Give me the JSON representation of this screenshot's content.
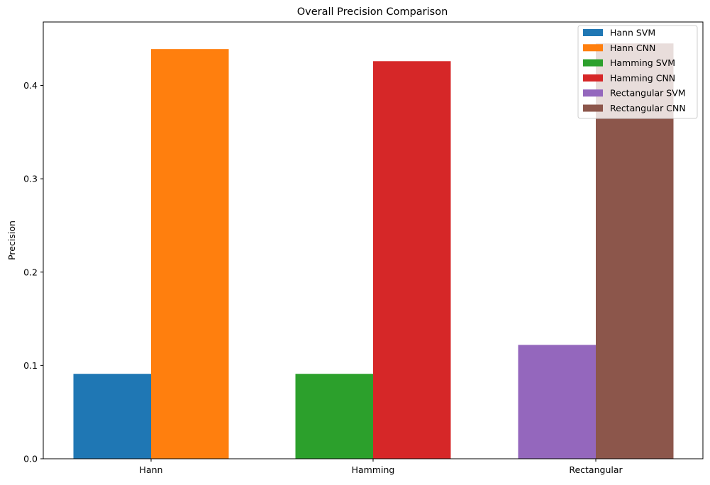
{
  "chart_data": {
    "type": "bar",
    "title": "Overall Precision Comparison",
    "xlabel": "",
    "ylabel": "Precision",
    "categories": [
      "Hann",
      "Hamming",
      "Rectangular"
    ],
    "ylim": [
      0,
      0.468
    ],
    "yticks": [
      0.0,
      0.1,
      0.2,
      0.3,
      0.4
    ],
    "ytick_labels": [
      "0.0",
      "0.1",
      "0.2",
      "0.3",
      "0.4"
    ],
    "grid": false,
    "legend_position": "top-right",
    "series": [
      {
        "name": "Hann SVM",
        "color": "#1f77b4",
        "category": "Hann",
        "slot": "left",
        "value": 0.091
      },
      {
        "name": "Hann CNN",
        "color": "#ff7f0e",
        "category": "Hann",
        "slot": "right",
        "value": 0.439
      },
      {
        "name": "Hamming SVM",
        "color": "#2ca02c",
        "category": "Hamming",
        "slot": "left",
        "value": 0.091
      },
      {
        "name": "Hamming CNN",
        "color": "#d62728",
        "category": "Hamming",
        "slot": "right",
        "value": 0.426
      },
      {
        "name": "Rectangular SVM",
        "color": "#9467bd",
        "category": "Rectangular",
        "slot": "left",
        "value": 0.122
      },
      {
        "name": "Rectangular CNN",
        "color": "#8c564b",
        "category": "Rectangular",
        "slot": "right",
        "value": 0.445
      }
    ]
  }
}
